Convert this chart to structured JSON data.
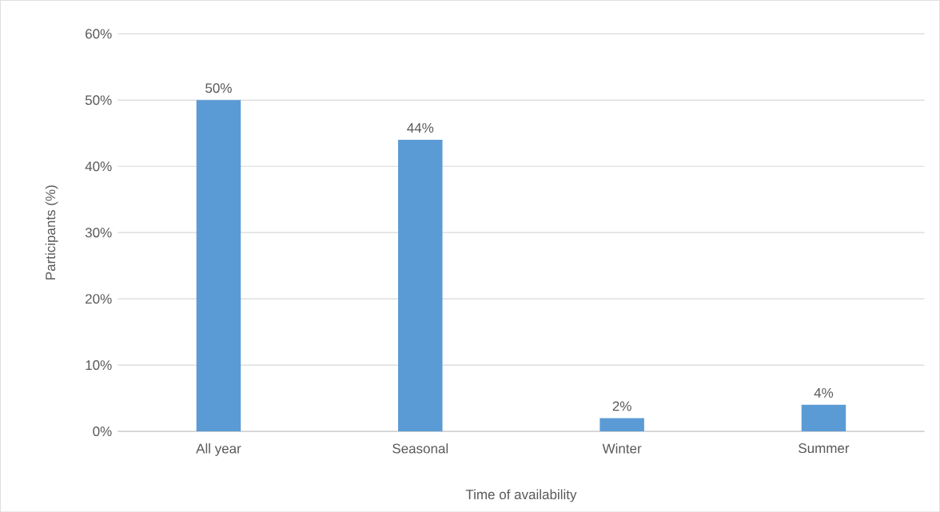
{
  "chart_data": {
    "type": "bar",
    "xlabel": "Time of availability",
    "ylabel": "Participants (%)",
    "categories": [
      "All year",
      "Seasonal",
      "Winter",
      "Summer"
    ],
    "values": [
      50,
      44,
      2,
      4
    ],
    "value_labels": [
      "50%",
      "44%",
      "2%",
      "4%"
    ],
    "color": "#5b9bd5",
    "ylim": [
      0,
      60
    ],
    "yticks": [
      {
        "value": 0,
        "label": "0%"
      },
      {
        "value": 10,
        "label": "10%"
      },
      {
        "value": 20,
        "label": "20%"
      },
      {
        "value": 30,
        "label": "30%"
      },
      {
        "value": 40,
        "label": "40%"
      },
      {
        "value": 50,
        "label": "50%"
      },
      {
        "value": 60,
        "label": "60%"
      }
    ],
    "grid": "y"
  }
}
